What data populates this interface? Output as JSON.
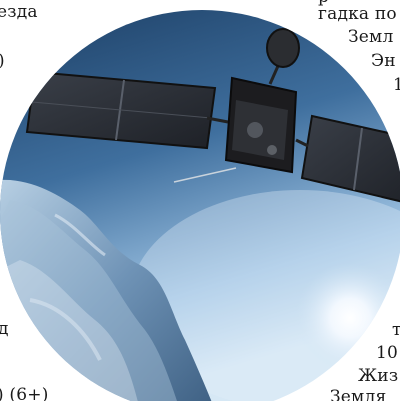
{
  "left_column": [
    "езда",
    ")",
    "д",
    ") (6+)"
  ],
  "right_column": [
    "р",
    "гадка по",
    "Земл",
    "Эн",
    "1",
    "т",
    "10",
    "Жиз",
    "Земля"
  ],
  "illustration": {
    "subject": "spacecraft-near-comet",
    "colors": {
      "space_dark": "#1c3f66",
      "space_light": "#cfe2f2",
      "panel": "#2a2e35",
      "comet": "#8fb0cc"
    }
  }
}
